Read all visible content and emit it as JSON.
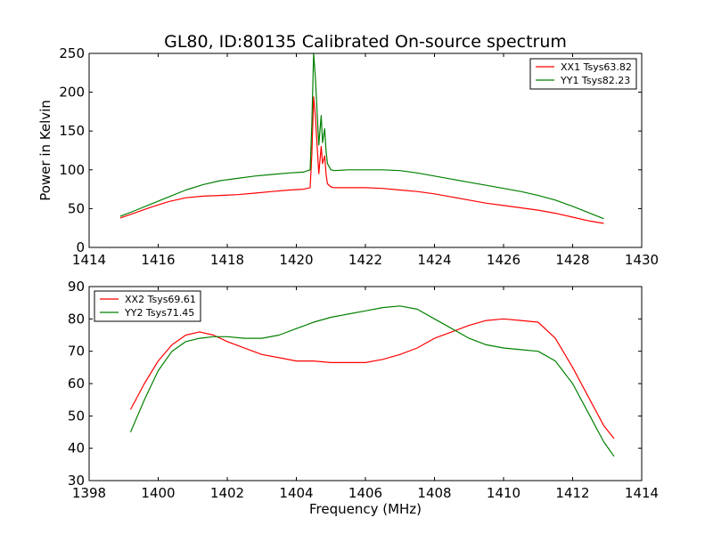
{
  "chart_data": [
    {
      "type": "line",
      "title": "GL80, ID:80135 Calibrated On-source spectrum",
      "xlabel": "",
      "ylabel": "Power in Kelvin",
      "xlim": [
        1414,
        1430
      ],
      "ylim": [
        0,
        250
      ],
      "xticks": [
        1414,
        1416,
        1418,
        1420,
        1422,
        1424,
        1426,
        1428,
        1430
      ],
      "yticks": [
        0,
        50,
        100,
        150,
        200,
        250
      ],
      "legend": "top-right",
      "grid": false,
      "series": [
        {
          "name": "XX1 Tsys63.82",
          "color": "#ff0000",
          "x": [
            1414.9,
            1415.3,
            1415.8,
            1416.3,
            1416.8,
            1417.3,
            1417.8,
            1418.3,
            1418.8,
            1419.3,
            1419.8,
            1420.2,
            1420.4,
            1420.45,
            1420.5,
            1420.55,
            1420.65,
            1420.72,
            1420.76,
            1420.82,
            1420.86,
            1420.9,
            1421.0,
            1421.1,
            1421.5,
            1422.0,
            1422.5,
            1423.0,
            1423.5,
            1424.0,
            1424.5,
            1425.0,
            1425.5,
            1426.0,
            1426.5,
            1427.0,
            1427.5,
            1428.0,
            1428.5,
            1428.9
          ],
          "y": [
            38,
            44,
            52,
            59,
            64,
            66,
            67,
            68,
            70,
            72,
            74,
            75,
            77,
            120,
            194,
            170,
            95,
            130,
            108,
            118,
            95,
            82,
            78,
            77,
            77,
            77,
            76,
            74,
            72,
            69,
            65,
            61,
            57,
            54,
            51,
            48,
            44,
            39,
            34,
            31
          ]
        },
        {
          "name": "YY1 Tsys82.23",
          "color": "#008000",
          "x": [
            1414.9,
            1415.3,
            1415.8,
            1416.3,
            1416.8,
            1417.3,
            1417.8,
            1418.3,
            1418.8,
            1419.3,
            1419.8,
            1420.2,
            1420.4,
            1420.45,
            1420.5,
            1420.55,
            1420.65,
            1420.72,
            1420.76,
            1420.82,
            1420.86,
            1420.9,
            1421.0,
            1421.1,
            1421.5,
            1422.0,
            1422.5,
            1423.0,
            1423.5,
            1424.0,
            1424.5,
            1425.0,
            1425.5,
            1426.0,
            1426.5,
            1427.0,
            1427.5,
            1428.0,
            1428.5,
            1428.9
          ],
          "y": [
            40,
            47,
            56,
            65,
            74,
            81,
            86,
            89,
            92,
            94,
            96,
            97,
            100,
            160,
            250,
            220,
            132,
            170,
            135,
            153,
            125,
            108,
            100,
            99,
            100,
            100,
            100,
            99,
            96,
            92,
            88,
            84,
            80,
            76,
            72,
            67,
            61,
            53,
            44,
            37
          ]
        }
      ]
    },
    {
      "type": "line",
      "title": "",
      "xlabel": "Frequency (MHz)",
      "ylabel": "",
      "xlim": [
        1398,
        1414
      ],
      "ylim": [
        30,
        90
      ],
      "xticks": [
        1398,
        1400,
        1402,
        1404,
        1406,
        1408,
        1410,
        1412,
        1414
      ],
      "yticks": [
        30,
        40,
        50,
        60,
        70,
        80,
        90
      ],
      "legend": "top-left",
      "grid": false,
      "series": [
        {
          "name": "XX2 Tsys69.61",
          "color": "#ff0000",
          "x": [
            1399.2,
            1399.6,
            1400.0,
            1400.4,
            1400.8,
            1401.2,
            1401.6,
            1402.0,
            1402.5,
            1403.0,
            1403.5,
            1404.0,
            1404.5,
            1405.0,
            1405.5,
            1406.0,
            1406.5,
            1407.0,
            1407.5,
            1408.0,
            1408.5,
            1409.0,
            1409.5,
            1410.0,
            1410.5,
            1411.0,
            1411.5,
            1412.0,
            1412.5,
            1412.9,
            1413.2
          ],
          "y": [
            52,
            60,
            67,
            72,
            75,
            76,
            75,
            73,
            71,
            69,
            68,
            67,
            67,
            66.5,
            66.5,
            66.5,
            67.5,
            69,
            71,
            74,
            76,
            78,
            79.5,
            80,
            79.5,
            79,
            74,
            65,
            55,
            47,
            43
          ]
        },
        {
          "name": "YY2 Tsys71.45",
          "color": "#008000",
          "x": [
            1399.2,
            1399.6,
            1400.0,
            1400.4,
            1400.8,
            1401.2,
            1401.6,
            1402.0,
            1402.5,
            1403.0,
            1403.5,
            1404.0,
            1404.5,
            1405.0,
            1405.5,
            1406.0,
            1406.5,
            1407.0,
            1407.5,
            1408.0,
            1408.5,
            1409.0,
            1409.5,
            1410.0,
            1410.5,
            1411.0,
            1411.5,
            1412.0,
            1412.5,
            1412.9,
            1413.2
          ],
          "y": [
            45,
            55,
            64,
            70,
            73,
            74,
            74.5,
            74.5,
            74,
            74,
            75,
            77,
            79,
            80.5,
            81.5,
            82.5,
            83.5,
            84,
            83,
            80,
            77,
            74,
            72,
            71,
            70.5,
            70,
            67,
            60,
            50,
            42,
            37.5
          ]
        }
      ]
    }
  ]
}
